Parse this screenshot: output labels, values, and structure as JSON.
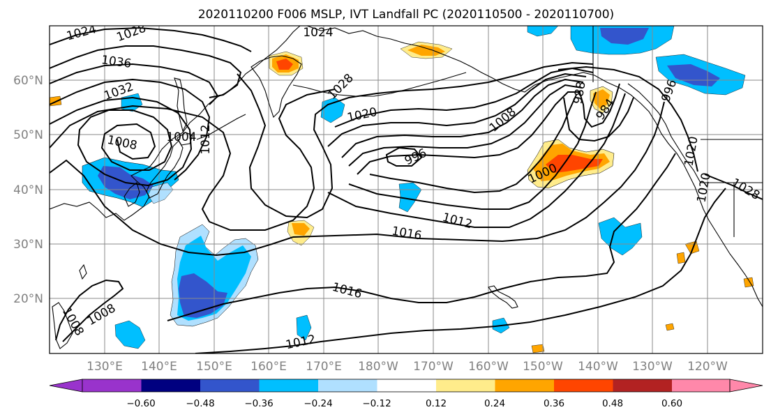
{
  "title": "2020110200 F006 MSLP, IVT Landfall PC (2020110500 - 2020110700)",
  "lat_ticks": [
    "20°N",
    "30°N",
    "40°N",
    "50°N",
    "60°N"
  ],
  "lon_ticks": [
    "130°E",
    "140°E",
    "150°E",
    "160°E",
    "170°E",
    "180°W",
    "170°W",
    "160°W",
    "150°W",
    "140°W",
    "130°W",
    "120°W"
  ],
  "colorbar": {
    "ticks": [
      "−0.60",
      "−0.48",
      "−0.36",
      "−0.24",
      "−0.12",
      "0.12",
      "0.24",
      "0.36",
      "0.48",
      "0.60"
    ],
    "colors": [
      "#9933cc",
      "#000080",
      "#3355cc",
      "#00bfff",
      "#b0e0ff",
      "#ffffff",
      "#ffec8b",
      "#ffa500",
      "#ff4500",
      "#b22222",
      "#ff88aa"
    ]
  },
  "isobar_labels": [
    "1024",
    "1028",
    "1036",
    "1032",
    "1008",
    "1004",
    "1012",
    "1024",
    "1028",
    "1020",
    "996",
    "1012",
    "1016",
    "1016",
    "1012",
    "1008",
    "1008",
    "1008",
    "988",
    "984",
    "1000",
    "996",
    "1020",
    "1028",
    "1020"
  ]
}
